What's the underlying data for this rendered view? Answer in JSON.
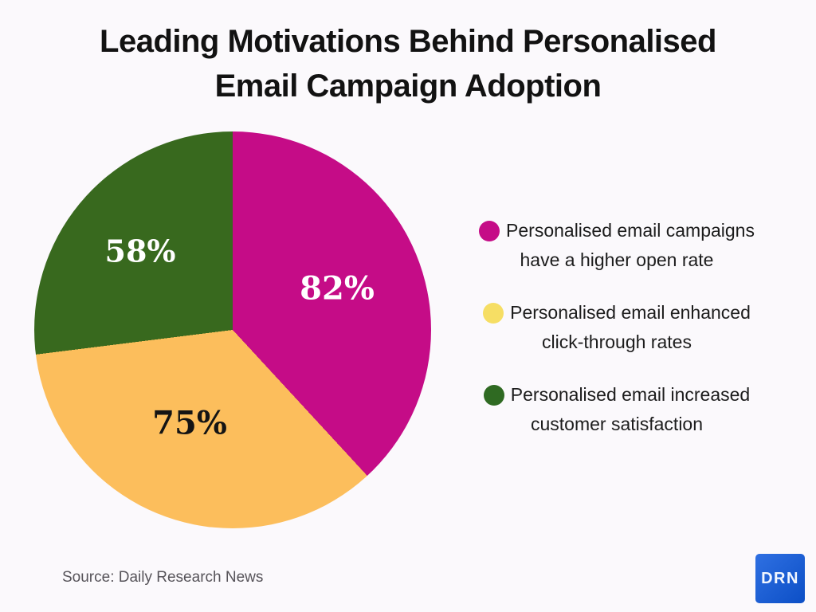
{
  "page": {
    "background": "#FBF9FC",
    "title": {
      "line1": "Leading Motivations Behind Personalised",
      "line2": "Email Campaign Adoption"
    },
    "source": "Source: Daily Research News",
    "logo": {
      "text": "DRN",
      "color_top": "#2F70E2",
      "color_bottom": "#0C4FC6"
    }
  },
  "chart_data": {
    "type": "pie",
    "title": "Leading Motivations Behind Personalised Email Campaign Adoption",
    "start_angle_deg": 0,
    "direction": "clockwise",
    "legend_position": "right",
    "slices": [
      {
        "label": "Personalised email campaigns have a higher open rate",
        "value": 82,
        "display": "82%",
        "color": "#C50C87",
        "label_color": "#FFFFFF"
      },
      {
        "label": "Personalised email enhanced click-through rates",
        "value": 75,
        "display": "75%",
        "color": "#FCBE5C",
        "label_color": "#141414"
      },
      {
        "label": "Personalised email increased customer satisfaction",
        "value": 58,
        "display": "58%",
        "color": "#38691E",
        "label_color": "#FFFFFF"
      }
    ]
  },
  "legend": {
    "items": [
      {
        "line1": "Personalised email campaigns",
        "line2": "have a higher open rate",
        "dot_color": "#C50C87"
      },
      {
        "line1": "Personalised email enhanced",
        "line2": "click-through rates",
        "dot_color": "#F6DE64"
      },
      {
        "line1": "Personalised email increased",
        "line2": "customer satisfaction",
        "dot_color": "#2F6A22"
      }
    ]
  }
}
